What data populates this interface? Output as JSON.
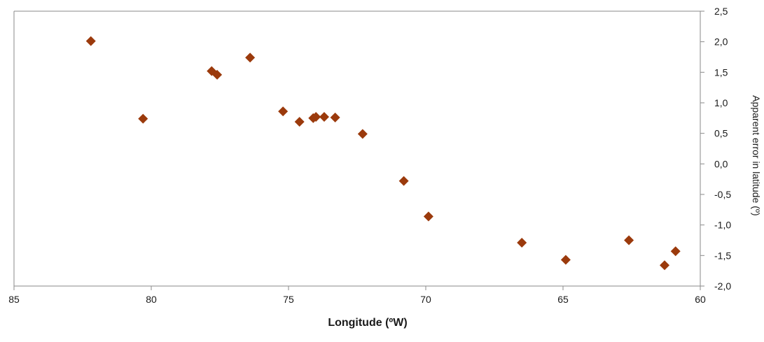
{
  "chart_data": {
    "type": "scatter",
    "title": "",
    "xlabel": "Longitude (ºW)",
    "ylabel": "Apparent error in latitude (º)",
    "xlim": [
      85,
      60
    ],
    "ylim": [
      -2.0,
      2.5
    ],
    "x_ticks": [
      "85",
      "80",
      "75",
      "70",
      "65",
      "60"
    ],
    "y_ticks": [
      "2,5",
      "2,0",
      "1,5",
      "1,0",
      "0,5",
      "0,0",
      "-0,5",
      "-1,0",
      "-1,5",
      "-2,0"
    ],
    "grid": false,
    "legend": "none",
    "marker": "diamond",
    "marker_color": "#9b3a0c",
    "series": [
      {
        "points": [
          [
            82.2,
            2.01
          ],
          [
            80.3,
            0.74
          ],
          [
            77.8,
            1.52
          ],
          [
            77.6,
            1.46
          ],
          [
            76.4,
            1.74
          ],
          [
            75.2,
            0.86
          ],
          [
            74.6,
            0.69
          ],
          [
            74.1,
            0.75
          ],
          [
            74.0,
            0.77
          ],
          [
            73.7,
            0.77
          ],
          [
            73.3,
            0.76
          ],
          [
            72.3,
            0.49
          ],
          [
            70.8,
            -0.28
          ],
          [
            69.9,
            -0.86
          ],
          [
            66.5,
            -1.29
          ],
          [
            64.9,
            -1.57
          ],
          [
            62.6,
            -1.25
          ],
          [
            61.3,
            -1.66
          ],
          [
            60.9,
            -1.43
          ]
        ]
      }
    ]
  }
}
